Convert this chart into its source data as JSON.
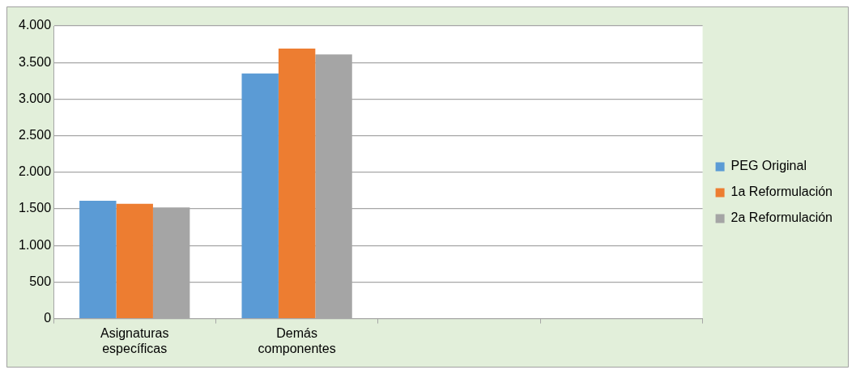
{
  "chart_data": {
    "type": "bar",
    "categories": [
      "Asignaturas específicas",
      "Demás componentes",
      null,
      null
    ],
    "series": [
      {
        "name": "PEG Original",
        "color": "#5b9bd5",
        "values": [
          1610,
          3350,
          null,
          null
        ]
      },
      {
        "name": "1a Reformulación",
        "color": "#ed7d31",
        "values": [
          1570,
          3690,
          null,
          null
        ]
      },
      {
        "name": "2a Reformulación",
        "color": "#a5a5a5",
        "values": [
          1520,
          3610,
          null,
          null
        ]
      }
    ],
    "ylim": [
      0,
      4000
    ],
    "yticks": [
      0,
      500,
      {
        "value": 1000,
        "label": "1.000"
      },
      {
        "value": 1500,
        "label": "1.500"
      },
      {
        "value": 2000,
        "label": "2.000"
      },
      {
        "value": 2500,
        "label": "2.500"
      },
      {
        "value": 3000,
        "label": "3.000"
      },
      {
        "value": 3500,
        "label": "3.500"
      },
      {
        "value": 4000,
        "label": "4.000"
      }
    ],
    "grid": "y",
    "legend": "right"
  }
}
